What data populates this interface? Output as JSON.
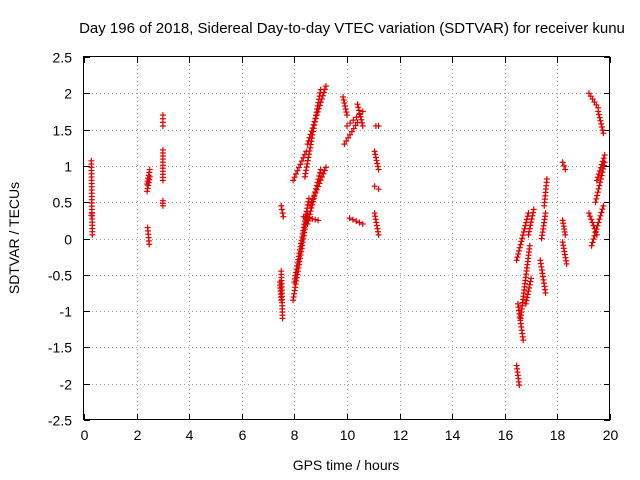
{
  "chart_data": {
    "type": "scatter",
    "title": "Day 196 of 2018, Sidereal Day-to-day VTEC variation (SDTVAR) for receiver kunu",
    "xlabel": "GPS time / hours",
    "ylabel": "SDTVAR / TECUs",
    "xlim": [
      0,
      20
    ],
    "ylim": [
      -2.5,
      2.5
    ],
    "xticks": [
      0,
      2,
      4,
      6,
      8,
      10,
      12,
      14,
      16,
      18,
      20
    ],
    "yticks": [
      -2.5,
      -2,
      -1.5,
      -1,
      -0.5,
      0,
      0.5,
      1,
      1.5,
      2,
      2.5
    ],
    "xtick_labels": [
      "0",
      "2",
      "4",
      "6",
      "8",
      "10",
      "12",
      "14",
      "16",
      "18",
      "20"
    ],
    "ytick_labels": [
      "-2.5",
      "-2",
      "-1.5",
      "-1",
      "-0.5",
      "0",
      "0.5",
      "1",
      "1.5",
      "2",
      "2.5"
    ],
    "grid": true,
    "marker": "+",
    "marker_color": "#e00000",
    "segments": [
      {
        "x": [
          0.28,
          0.3,
          0.32
        ],
        "y": [
          1.07,
          0.4,
          0.05
        ]
      },
      {
        "x": [
          0.28,
          0.3
        ],
        "y": [
          0.32,
          0.35
        ]
      },
      {
        "x": [
          2.4,
          2.5
        ],
        "y": [
          0.75,
          0.95
        ]
      },
      {
        "x": [
          2.4,
          2.5
        ],
        "y": [
          0.65,
          0.85
        ]
      },
      {
        "x": [
          2.42,
          2.48
        ],
        "y": [
          0.15,
          -0.08
        ]
      },
      {
        "x": [
          3.0,
          3.0
        ],
        "y": [
          1.7,
          1.55
        ]
      },
      {
        "x": [
          3.0,
          3.0
        ],
        "y": [
          1.22,
          0.8
        ]
      },
      {
        "x": [
          3.0,
          3.0
        ],
        "y": [
          0.52,
          0.45
        ]
      },
      {
        "x": [
          7.5,
          7.58
        ],
        "y": [
          0.45,
          0.3
        ]
      },
      {
        "x": [
          7.5,
          7.55
        ],
        "y": [
          -0.45,
          -1.1
        ]
      },
      {
        "x": [
          7.45,
          7.5
        ],
        "y": [
          -0.6,
          -0.85
        ]
      },
      {
        "x": [
          7.95,
          8.5
        ],
        "y": [
          -0.85,
          0.35
        ]
      },
      {
        "x": [
          8.0,
          8.55
        ],
        "y": [
          -0.6,
          0.55
        ]
      },
      {
        "x": [
          7.95,
          8.45
        ],
        "y": [
          0.8,
          1.2
        ]
      },
      {
        "x": [
          8.4,
          9.0
        ],
        "y": [
          0.85,
          2.05
        ]
      },
      {
        "x": [
          8.5,
          9.2
        ],
        "y": [
          1.3,
          2.1
        ]
      },
      {
        "x": [
          8.5,
          9.0
        ],
        "y": [
          0.2,
          0.95
        ]
      },
      {
        "x": [
          8.6,
          9.2
        ],
        "y": [
          0.45,
          0.98
        ]
      },
      {
        "x": [
          8.35,
          8.9
        ],
        "y": [
          0.3,
          0.25
        ]
      },
      {
        "x": [
          9.85,
          10.0
        ],
        "y": [
          1.95,
          1.7
        ]
      },
      {
        "x": [
          9.9,
          10.4
        ],
        "y": [
          1.3,
          1.6
        ]
      },
      {
        "x": [
          10.0,
          10.6
        ],
        "y": [
          1.55,
          1.75
        ]
      },
      {
        "x": [
          10.4,
          10.6
        ],
        "y": [
          1.85,
          1.55
        ]
      },
      {
        "x": [
          10.1,
          10.6
        ],
        "y": [
          0.28,
          0.2
        ]
      },
      {
        "x": [
          11.1,
          11.2
        ],
        "y": [
          1.55,
          1.55
        ]
      },
      {
        "x": [
          11.05,
          11.2
        ],
        "y": [
          1.2,
          0.95
        ]
      },
      {
        "x": [
          11.05,
          11.2
        ],
        "y": [
          0.72,
          0.68
        ]
      },
      {
        "x": [
          11.05,
          11.2
        ],
        "y": [
          0.35,
          0.05
        ]
      },
      {
        "x": [
          16.45,
          16.55
        ],
        "y": [
          -1.75,
          -2.02
        ]
      },
      {
        "x": [
          16.5,
          16.7
        ],
        "y": [
          -0.9,
          -1.4
        ]
      },
      {
        "x": [
          16.45,
          16.9
        ],
        "y": [
          -0.3,
          0.35
        ]
      },
      {
        "x": [
          16.6,
          16.95
        ],
        "y": [
          -1.1,
          -0.1
        ]
      },
      {
        "x": [
          16.8,
          17.0
        ],
        "y": [
          -0.9,
          -0.55
        ]
      },
      {
        "x": [
          16.9,
          17.1
        ],
        "y": [
          0.05,
          0.4
        ]
      },
      {
        "x": [
          17.35,
          17.55
        ],
        "y": [
          -0.3,
          -0.75
        ]
      },
      {
        "x": [
          17.4,
          17.55
        ],
        "y": [
          0.0,
          0.35
        ]
      },
      {
        "x": [
          17.5,
          17.6
        ],
        "y": [
          0.45,
          0.82
        ]
      },
      {
        "x": [
          18.2,
          18.3
        ],
        "y": [
          1.05,
          0.95
        ]
      },
      {
        "x": [
          18.2,
          18.35
        ],
        "y": [
          -0.05,
          -0.35
        ]
      },
      {
        "x": [
          18.2,
          18.3
        ],
        "y": [
          0.25,
          0.05
        ]
      },
      {
        "x": [
          19.2,
          19.55
        ],
        "y": [
          2.0,
          1.8
        ]
      },
      {
        "x": [
          19.55,
          19.75
        ],
        "y": [
          1.75,
          1.45
        ]
      },
      {
        "x": [
          19.2,
          19.5
        ],
        "y": [
          0.35,
          0.05
        ]
      },
      {
        "x": [
          19.3,
          19.75
        ],
        "y": [
          -0.1,
          0.45
        ]
      },
      {
        "x": [
          19.45,
          19.8
        ],
        "y": [
          0.5,
          1.05
        ]
      },
      {
        "x": [
          19.5,
          19.8
        ],
        "y": [
          0.8,
          1.15
        ]
      }
    ]
  }
}
